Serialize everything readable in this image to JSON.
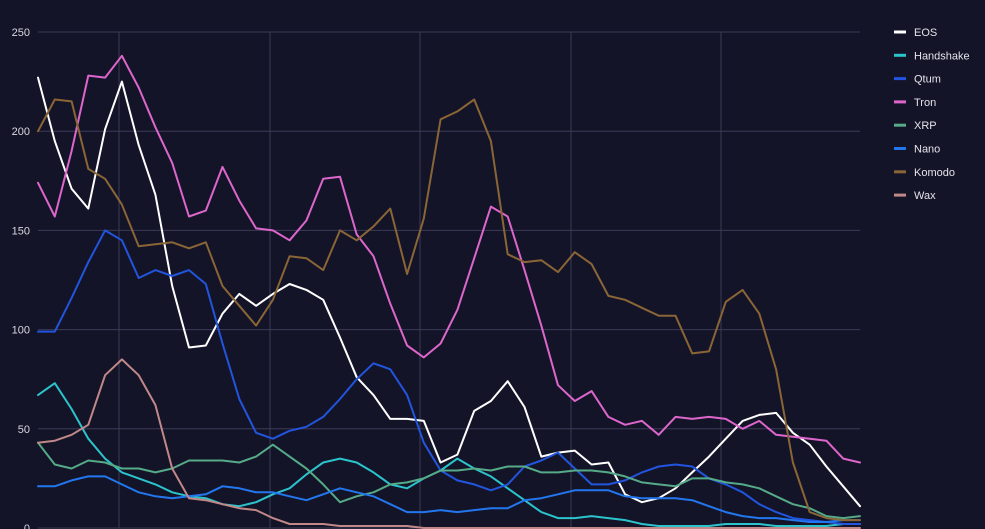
{
  "chart_data": {
    "type": "line",
    "title": "",
    "xlabel": "",
    "ylabel": "",
    "ylim": [
      0,
      250
    ],
    "yticks": [
      0,
      50,
      100,
      150,
      200,
      250
    ],
    "grid": true,
    "legend_position": "top-right",
    "background": "#141428",
    "grid_color": "#3a3a58",
    "points": 50,
    "series": [
      {
        "name": "EOS",
        "color": "#ffffff",
        "values": [
          227,
          195,
          171,
          161,
          201,
          225,
          193,
          168,
          122,
          91,
          92,
          108,
          118,
          112,
          118,
          123,
          120,
          115,
          96,
          76,
          67,
          55,
          55,
          54,
          33,
          37,
          59,
          64,
          74,
          61,
          36,
          38,
          39,
          32,
          33,
          17,
          13,
          15,
          20,
          28,
          36,
          45,
          54,
          57,
          58,
          48,
          42,
          31,
          21,
          11
        ]
      },
      {
        "name": "Handshake",
        "color": "#2cc4cc",
        "values": [
          67,
          73,
          60,
          45,
          35,
          28,
          25,
          22,
          18,
          16,
          15,
          12,
          11,
          13,
          17,
          20,
          27,
          33,
          35,
          33,
          28,
          22,
          20,
          25,
          29,
          35,
          30,
          26,
          20,
          14,
          8,
          5,
          5,
          6,
          5,
          4,
          2,
          1,
          1,
          1,
          1,
          2,
          2,
          2,
          1,
          1,
          1,
          1,
          2,
          2
        ]
      },
      {
        "name": "Qtum",
        "color": "#2255dd",
        "values": [
          99,
          99,
          116,
          134,
          150,
          145,
          126,
          130,
          127,
          130,
          123,
          93,
          65,
          48,
          45,
          49,
          51,
          56,
          65,
          75,
          83,
          80,
          67,
          43,
          29,
          24,
          22,
          19,
          22,
          31,
          34,
          38,
          30,
          22,
          22,
          24,
          28,
          31,
          32,
          31,
          25,
          22,
          18,
          12,
          8,
          5,
          4,
          3,
          2,
          2
        ]
      },
      {
        "name": "Tron",
        "color": "#dd66cc",
        "values": [
          174,
          157,
          190,
          228,
          227,
          238,
          222,
          202,
          184,
          157,
          160,
          182,
          165,
          151,
          150,
          145,
          155,
          176,
          177,
          148,
          137,
          113,
          92,
          86,
          93,
          110,
          136,
          162,
          157,
          130,
          102,
          72,
          64,
          69,
          56,
          52,
          54,
          47,
          56,
          55,
          56,
          55,
          50,
          54,
          47,
          46,
          45,
          44,
          35,
          33
        ]
      },
      {
        "name": "XRP",
        "color": "#55aa88",
        "values": [
          43,
          32,
          30,
          34,
          33,
          30,
          30,
          28,
          30,
          34,
          34,
          34,
          33,
          36,
          42,
          36,
          30,
          22,
          13,
          16,
          18,
          22,
          23,
          25,
          29,
          29,
          30,
          29,
          31,
          31,
          28,
          28,
          29,
          29,
          28,
          26,
          23,
          22,
          21,
          25,
          25,
          23,
          22,
          20,
          16,
          12,
          10,
          6,
          5,
          6
        ]
      },
      {
        "name": "Nano",
        "color": "#2277ee",
        "values": [
          21,
          21,
          24,
          26,
          26,
          22,
          18,
          16,
          15,
          16,
          17,
          21,
          20,
          18,
          18,
          16,
          14,
          17,
          20,
          18,
          16,
          12,
          8,
          8,
          9,
          8,
          9,
          10,
          10,
          14,
          15,
          17,
          19,
          19,
          19,
          16,
          15,
          15,
          15,
          14,
          11,
          8,
          6,
          5,
          5,
          4,
          3,
          3,
          4,
          4
        ]
      },
      {
        "name": "Komodo",
        "color": "#8a6536",
        "values": [
          200,
          216,
          215,
          181,
          176,
          163,
          142,
          143,
          144,
          141,
          144,
          122,
          112,
          102,
          115,
          137,
          136,
          130,
          150,
          145,
          152,
          161,
          128,
          156,
          206,
          210,
          216,
          195,
          138,
          134,
          135,
          129,
          139,
          133,
          117,
          115,
          111,
          107,
          107,
          88,
          89,
          114,
          120,
          108,
          80,
          33,
          8,
          5,
          4,
          4
        ]
      },
      {
        "name": "Wax",
        "color": "#c08888",
        "values": [
          43,
          44,
          47,
          52,
          77,
          85,
          77,
          62,
          30,
          15,
          14,
          12,
          10,
          9,
          5,
          2,
          2,
          2,
          1,
          1,
          1,
          1,
          1,
          0,
          0,
          0,
          0,
          0,
          0,
          0,
          0,
          0,
          0,
          0,
          0,
          0,
          0,
          0,
          0,
          0,
          0,
          0,
          0,
          0,
          0,
          0,
          0,
          0,
          0,
          0
        ]
      }
    ]
  }
}
